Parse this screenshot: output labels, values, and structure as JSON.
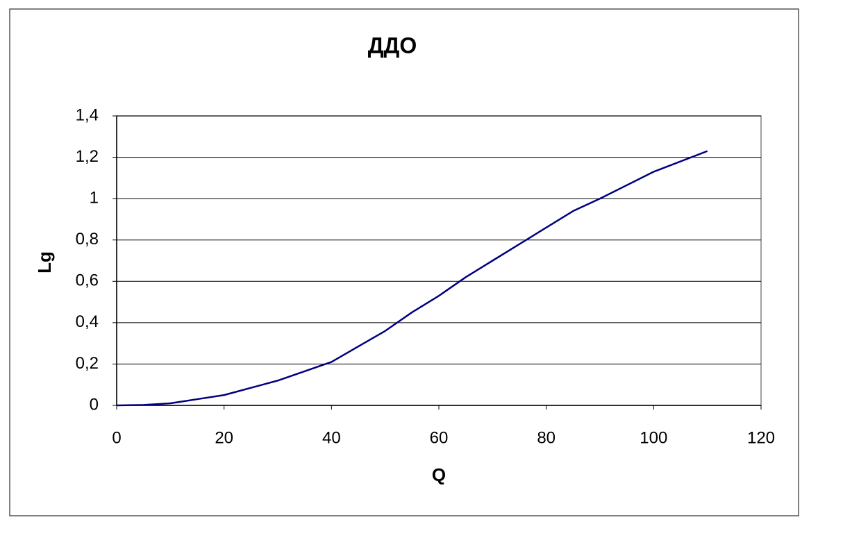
{
  "chart_data": {
    "type": "line",
    "title": "ДДО",
    "x_label": "Q",
    "y_label": "Lg",
    "x": [
      0,
      5,
      10,
      15,
      20,
      30,
      40,
      50,
      55,
      60,
      65,
      70,
      80,
      85,
      90,
      100,
      110
    ],
    "values": [
      0,
      0.002,
      0.01,
      0.03,
      0.05,
      0.12,
      0.21,
      0.36,
      0.45,
      0.53,
      0.62,
      0.7,
      0.86,
      0.94,
      1.0,
      1.13,
      1.23
    ],
    "color": "#000080",
    "xlim": [
      0,
      120
    ],
    "xticks": [
      0,
      20,
      40,
      60,
      80,
      100,
      120
    ],
    "ylim": [
      0,
      1.4
    ],
    "yticks": [
      0,
      {
        "value": 0.2,
        "label": "0,2"
      },
      {
        "value": 0.4,
        "label": "0,4"
      },
      {
        "value": 0.6,
        "label": "0,6"
      },
      {
        "value": 0.8,
        "label": "0,8"
      },
      1,
      {
        "value": 1.2,
        "label": "1,2"
      },
      {
        "value": 1.4,
        "label": "1,4"
      }
    ],
    "grid": true
  }
}
